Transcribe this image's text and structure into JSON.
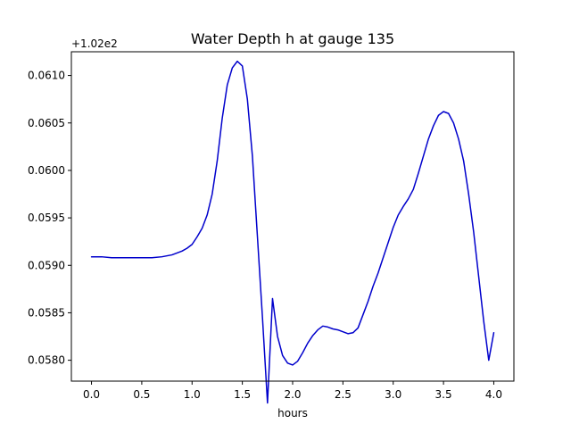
{
  "chart_data": {
    "type": "line",
    "title": "Water Depth h at gauge 135",
    "xlabel": "hours",
    "ylabel": "",
    "offset_label": "+1.02e2",
    "xlim": [
      -0.2,
      4.2
    ],
    "ylim": [
      0.05778,
      0.06125
    ],
    "x_ticks": [
      0.0,
      0.5,
      1.0,
      1.5,
      2.0,
      2.5,
      3.0,
      3.5,
      4.0
    ],
    "x_tick_labels": [
      "0.0",
      "0.5",
      "1.0",
      "1.5",
      "2.0",
      "2.5",
      "3.0",
      "3.5",
      "4.0"
    ],
    "y_ticks": [
      0.058,
      0.0585,
      0.059,
      0.0595,
      0.06,
      0.0605,
      0.061
    ],
    "y_tick_labels": [
      "0.0580",
      "0.0585",
      "0.0590",
      "0.0595",
      "0.0600",
      "0.0605",
      "0.0610"
    ],
    "grid": false,
    "legend": "none",
    "series": [
      {
        "color": "#0000cc",
        "x": [
          0.0,
          0.1,
          0.2,
          0.3,
          0.4,
          0.5,
          0.6,
          0.7,
          0.8,
          0.9,
          0.95,
          1.0,
          1.05,
          1.1,
          1.15,
          1.2,
          1.25,
          1.3,
          1.35,
          1.4,
          1.45,
          1.5,
          1.55,
          1.6,
          1.65,
          1.7,
          1.75,
          1.8,
          1.85,
          1.9,
          1.95,
          2.0,
          2.05,
          2.1,
          2.15,
          2.2,
          2.25,
          2.3,
          2.35,
          2.4,
          2.45,
          2.5,
          2.55,
          2.6,
          2.65,
          2.7,
          2.75,
          2.8,
          2.85,
          2.9,
          2.95,
          3.0,
          3.05,
          3.1,
          3.15,
          3.2,
          3.25,
          3.3,
          3.35,
          3.4,
          3.45,
          3.5,
          3.55,
          3.6,
          3.65,
          3.7,
          3.75,
          3.8,
          3.85,
          3.9,
          3.95,
          4.0
        ],
        "y": [
          0.05909,
          0.05909,
          0.05908,
          0.05908,
          0.05908,
          0.05908,
          0.05908,
          0.05909,
          0.05911,
          0.05915,
          0.05918,
          0.05922,
          0.0593,
          0.05939,
          0.05953,
          0.05975,
          0.0601,
          0.06055,
          0.0609,
          0.06108,
          0.06115,
          0.0611,
          0.06075,
          0.06015,
          0.0593,
          0.05845,
          0.05755,
          0.05865,
          0.05825,
          0.05805,
          0.05797,
          0.05795,
          0.05799,
          0.05808,
          0.05818,
          0.05826,
          0.05832,
          0.05836,
          0.05835,
          0.05833,
          0.05832,
          0.0583,
          0.05828,
          0.05829,
          0.05834,
          0.05848,
          0.05862,
          0.05878,
          0.05892,
          0.05908,
          0.05924,
          0.0594,
          0.05953,
          0.05962,
          0.0597,
          0.0598,
          0.05997,
          0.06015,
          0.06033,
          0.06047,
          0.06058,
          0.06062,
          0.0606,
          0.0605,
          0.06033,
          0.0601,
          0.05975,
          0.05935,
          0.05888,
          0.05841,
          0.058,
          0.05829
        ]
      }
    ]
  }
}
